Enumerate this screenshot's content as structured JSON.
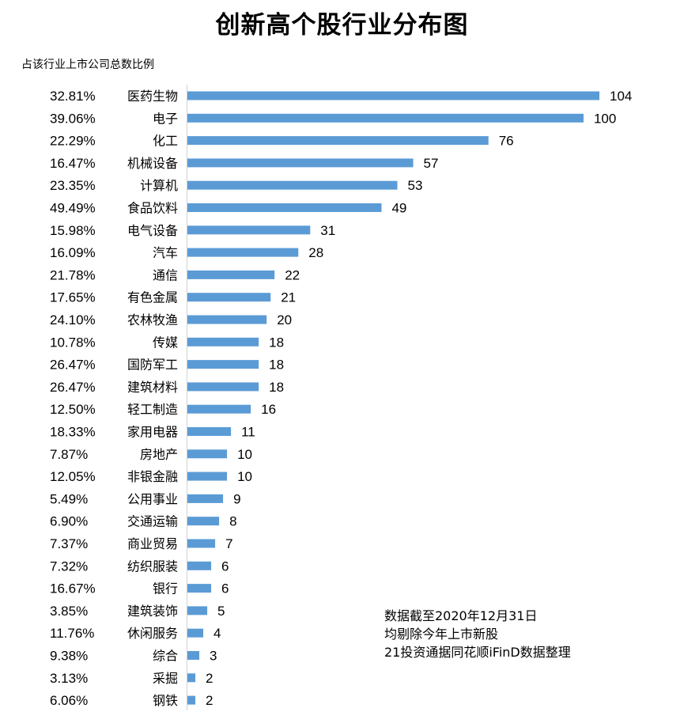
{
  "chart_data": {
    "type": "bar",
    "orientation": "horizontal",
    "title": "创新高个股行业分布图",
    "subtitle": "占该行业上市公司总数比例",
    "xlim": [
      0,
      104
    ],
    "bar_color": "#5b9bd5",
    "categories": [
      "医药生物",
      "电子",
      "化工",
      "机械设备",
      "计算机",
      "食品饮料",
      "电气设备",
      "汽车",
      "通信",
      "有色金属",
      "农林牧渔",
      "传媒",
      "国防军工",
      "建筑材料",
      "轻工制造",
      "家用电器",
      "房地产",
      "非银金融",
      "公用事业",
      "交通运输",
      "商业贸易",
      "纺织服装",
      "银行",
      "建筑装饰",
      "休闲服务",
      "综合",
      "采掘",
      "钢铁"
    ],
    "values": [
      104,
      100,
      76,
      57,
      53,
      49,
      31,
      28,
      22,
      21,
      20,
      18,
      18,
      18,
      16,
      11,
      10,
      10,
      9,
      8,
      7,
      6,
      6,
      5,
      4,
      3,
      2,
      2
    ],
    "percentages": [
      "32.81%",
      "39.06%",
      "22.29%",
      "16.47%",
      "23.35%",
      "49.49%",
      "15.98%",
      "16.09%",
      "21.78%",
      "17.65%",
      "24.10%",
      "10.78%",
      "26.47%",
      "26.47%",
      "12.50%",
      "18.33%",
      "7.87%",
      "12.05%",
      "5.49%",
      "6.90%",
      "7.37%",
      "7.32%",
      "16.67%",
      "3.85%",
      "11.76%",
      "9.38%",
      "3.13%",
      "6.06%"
    ]
  },
  "notes": [
    "数据截至2020年12月31日",
    "均剔除今年上市新股",
    "21投资通据同花顺iFinD数据整理"
  ]
}
